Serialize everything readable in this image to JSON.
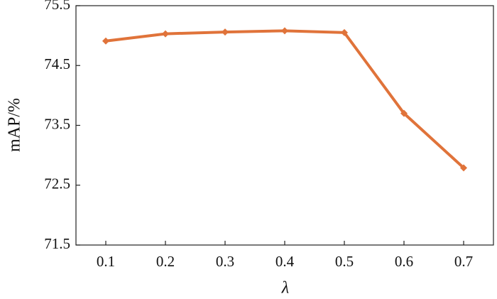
{
  "chart_data": {
    "type": "line",
    "x_label": "λ",
    "y_label": "mAP/%",
    "x": [
      0.1,
      0.2,
      0.3,
      0.4,
      0.5,
      0.6,
      0.7
    ],
    "series": [
      {
        "name": "mAP",
        "color": "#e0733a",
        "values": [
          74.91,
          75.03,
          75.06,
          75.08,
          75.05,
          73.7,
          72.79
        ]
      }
    ],
    "xlim": [
      0.05,
      0.75
    ],
    "xticks": [
      0.1,
      0.2,
      0.3,
      0.4,
      0.5,
      0.6,
      0.7
    ],
    "ylim": [
      71.5,
      75.5
    ],
    "yticks": [
      71.5,
      72.5,
      73.5,
      74.5,
      75.5
    ]
  }
}
